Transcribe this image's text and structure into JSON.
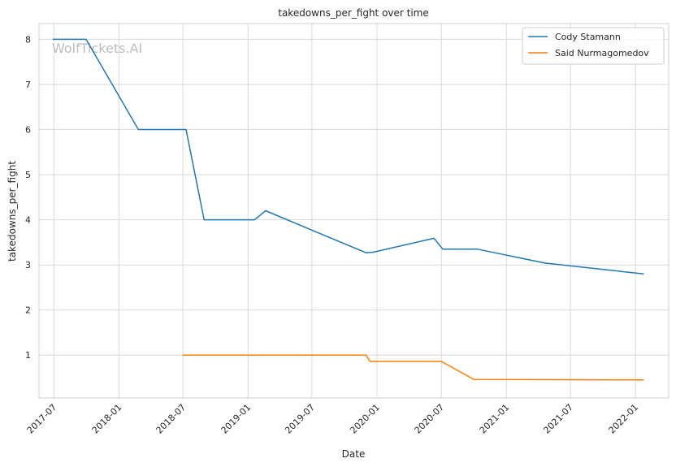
{
  "chart_data": {
    "type": "line",
    "title": "takedowns_per_fight over time",
    "xlabel": "Date",
    "ylabel": "takedowns_per_fight",
    "watermark": "WolfTickets.AI",
    "x_ticks": [
      "2017-07",
      "2018-01",
      "2018-07",
      "2019-01",
      "2019-07",
      "2020-01",
      "2020-07",
      "2021-01",
      "2021-07",
      "2022-01"
    ],
    "y_ticks": [
      1,
      2,
      3,
      4,
      5,
      6,
      7,
      8
    ],
    "xlim": [
      "2017-05-20",
      "2022-04-05"
    ],
    "ylim": [
      0.05,
      8.35
    ],
    "grid": true,
    "legend_position": "top-right",
    "series": [
      {
        "name": "Cody Stamann",
        "color": "#1f77b4",
        "points": [
          {
            "x": "2017-06-28",
            "y": 8.0
          },
          {
            "x": "2017-09-30",
            "y": 8.0
          },
          {
            "x": "2018-02-25",
            "y": 6.0
          },
          {
            "x": "2018-07-10",
            "y": 6.0
          },
          {
            "x": "2018-08-30",
            "y": 4.0
          },
          {
            "x": "2019-01-20",
            "y": 4.0
          },
          {
            "x": "2019-02-20",
            "y": 4.2
          },
          {
            "x": "2019-12-01",
            "y": 3.27
          },
          {
            "x": "2019-12-20",
            "y": 3.28
          },
          {
            "x": "2020-06-10",
            "y": 3.59
          },
          {
            "x": "2020-07-05",
            "y": 3.35
          },
          {
            "x": "2020-10-10",
            "y": 3.35
          },
          {
            "x": "2021-04-20",
            "y": 3.04
          },
          {
            "x": "2022-01-25",
            "y": 2.8
          }
        ]
      },
      {
        "name": "Said Nurmagomedov",
        "color": "#ff7f0e",
        "points": [
          {
            "x": "2018-07-01",
            "y": 1.0
          },
          {
            "x": "2019-12-01",
            "y": 1.0
          },
          {
            "x": "2019-12-12",
            "y": 0.86
          },
          {
            "x": "2020-07-01",
            "y": 0.86
          },
          {
            "x": "2020-10-01",
            "y": 0.46
          },
          {
            "x": "2022-01-25",
            "y": 0.45
          }
        ]
      }
    ]
  }
}
